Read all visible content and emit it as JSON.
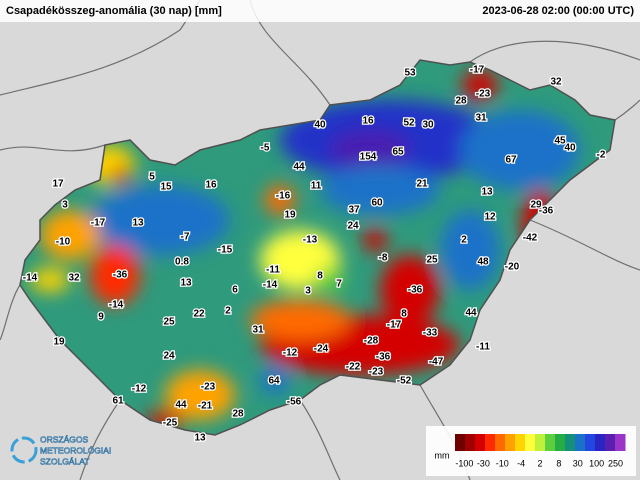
{
  "header": {
    "title": "Csapadékösszeg-anomália (30 nap) [mm]",
    "timestamp": "2023-06-28 02:00 (00:00 UTC)"
  },
  "stations": [
    -17,
    53,
    32,
    28,
    -23,
    31,
    40,
    16,
    52,
    30,
    45,
    40,
    -2,
    -5,
    154,
    65,
    67,
    44,
    5,
    17,
    15,
    16,
    11,
    21,
    13,
    -16,
    19,
    37,
    60,
    29,
    3,
    13,
    -17,
    24,
    12,
    -36,
    -10,
    -7,
    -13,
    -42,
    2,
    -15,
    0.8,
    -8,
    25,
    48,
    -20,
    -14,
    32,
    -36,
    -11,
    8,
    7,
    13,
    -14,
    3,
    -36,
    6,
    -14,
    9,
    2,
    22,
    8,
    44,
    25,
    -17,
    31,
    -33,
    -28,
    19,
    -24,
    -12,
    -11,
    24,
    -36,
    -22,
    -47,
    -23,
    -52,
    64,
    -12,
    -23,
    -56,
    61,
    44,
    -21,
    28,
    -25,
    13
  ],
  "legend": {
    "unit": "mm",
    "labels": [
      -100,
      -30,
      -10,
      -4,
      2,
      8,
      30,
      100,
      250
    ],
    "colors": [
      "#6e0000",
      "#a00000",
      "#d40000",
      "#ff2a00",
      "#ff6a00",
      "#ffa200",
      "#ffd400",
      "#ffff3c",
      "#bff03a",
      "#5ccf3e",
      "#23ad44",
      "#14907a",
      "#1a72c8",
      "#2446e0",
      "#2a24c2",
      "#5a1fb0",
      "#9a35c8"
    ]
  },
  "logo": [
    "ORSZÁGOS",
    "METEOROLÓGIAI",
    "SZOLGÁLAT"
  ]
}
